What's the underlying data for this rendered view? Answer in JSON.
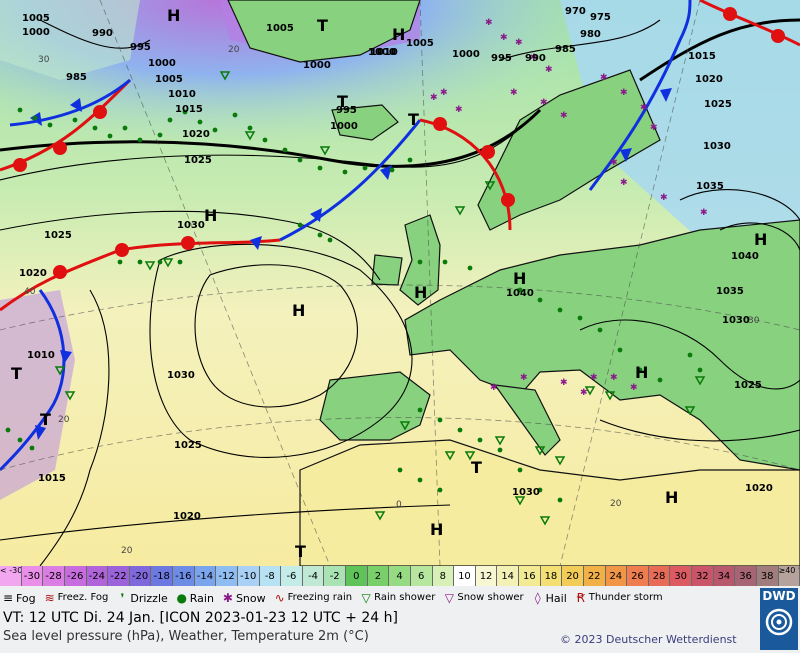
{
  "colors": {
    "cold_front": "#1030e0",
    "warm_front": "#e01010",
    "isobar": "#000000",
    "coast": "#000000",
    "rain_symbol": "#0a7a0a",
    "snow_symbol": "#8a1a8a",
    "ocean_warm": "#f7f3c6",
    "land_green": "#8ed88a"
  },
  "map": {
    "pressure_labels": [
      "1005",
      "1000",
      "990",
      "985",
      "995",
      "1000",
      "1005",
      "1005",
      "1000",
      "1010",
      "1015",
      "1020",
      "1025",
      "1030",
      "1025",
      "1020",
      "1010",
      "1030",
      "1025",
      "1020",
      "1015",
      "1000",
      "995",
      "1000",
      "1010",
      "1005",
      "1000",
      "995",
      "990",
      "985",
      "980",
      "975",
      "970",
      "1015",
      "1020",
      "1025",
      "1030",
      "1035",
      "1040",
      "1035",
      "1030",
      "1025",
      "1020",
      "1040",
      "1030"
    ],
    "highs": [
      "H",
      "H",
      "H",
      "H",
      "H",
      "H",
      "H",
      "H",
      "H",
      "H"
    ],
    "lows": [
      "T",
      "T",
      "T",
      "T",
      "T",
      "T",
      "T"
    ],
    "temp_labels": [
      "30",
      "40",
      "20",
      "30",
      "20",
      "0",
      "20",
      "20"
    ]
  },
  "scale": {
    "cells": [
      {
        "label": "< -30",
        "color": "#f3a6f0",
        "dark": false,
        "edge": true
      },
      {
        "label": "-30",
        "color": "#e98fe9",
        "dark": false
      },
      {
        "label": "-28",
        "color": "#da7ee4",
        "dark": false
      },
      {
        "label": "-26",
        "color": "#c66cde",
        "dark": false
      },
      {
        "label": "-24",
        "color": "#b163da",
        "dark": false
      },
      {
        "label": "-22",
        "color": "#9b62d9",
        "dark": false
      },
      {
        "label": "-20",
        "color": "#7e68dc",
        "dark": false
      },
      {
        "label": "-18",
        "color": "#6d78e0",
        "dark": false
      },
      {
        "label": "-16",
        "color": "#6d8ce6",
        "dark": false
      },
      {
        "label": "-14",
        "color": "#7aa4ec",
        "dark": false
      },
      {
        "label": "-12",
        "color": "#8fbcf1",
        "dark": false
      },
      {
        "label": "-10",
        "color": "#a8d1f5",
        "dark": false
      },
      {
        "label": "-8",
        "color": "#b7e2f4",
        "dark": false
      },
      {
        "label": "-6",
        "color": "#c3ece8",
        "dark": false
      },
      {
        "label": "-4",
        "color": "#bfe9d2",
        "dark": false
      },
      {
        "label": "-2",
        "color": "#a9e3b4",
        "dark": false
      },
      {
        "label": "0",
        "color": "#5fc35a",
        "dark": false
      },
      {
        "label": "2",
        "color": "#79cf6a",
        "dark": false
      },
      {
        "label": "4",
        "color": "#96db84",
        "dark": false
      },
      {
        "label": "6",
        "color": "#b7e79f",
        "dark": false
      },
      {
        "label": "8",
        "color": "#d6f0b6",
        "dark": false
      },
      {
        "label": "10",
        "color": "#ffffff",
        "dark": false
      },
      {
        "label": "12",
        "color": "#f8f7d3",
        "dark": false
      },
      {
        "label": "14",
        "color": "#f4f1b6",
        "dark": false
      },
      {
        "label": "16",
        "color": "#f3ea94",
        "dark": false
      },
      {
        "label": "18",
        "color": "#f3df73",
        "dark": false
      },
      {
        "label": "20",
        "color": "#f3cc58",
        "dark": false
      },
      {
        "label": "22",
        "color": "#f2b146",
        "dark": false
      },
      {
        "label": "24",
        "color": "#f19546",
        "dark": false
      },
      {
        "label": "26",
        "color": "#ef7d50",
        "dark": false
      },
      {
        "label": "28",
        "color": "#e86b58",
        "dark": false
      },
      {
        "label": "30",
        "color": "#dc5b62",
        "dark": false
      },
      {
        "label": "32",
        "color": "#ca5568",
        "dark": false
      },
      {
        "label": "34",
        "color": "#b8586d",
        "dark": false
      },
      {
        "label": "36",
        "color": "#a66474",
        "dark": false
      },
      {
        "label": "38",
        "color": "#a07d7c",
        "dark": false
      },
      {
        "label": "≥40 °C",
        "color": "#b6a29c",
        "dark": false,
        "edge": true
      }
    ]
  },
  "legend": [
    {
      "symbol": "≡",
      "label": "Fog",
      "color": "#000000"
    },
    {
      "symbol": "≋",
      "label": "Freez. Fog",
      "color": "#b01010"
    },
    {
      "symbol": "❜",
      "label": "Drizzle",
      "color": "#0a7a0a"
    },
    {
      "symbol": "●",
      "label": "Rain",
      "color": "#0a7a0a"
    },
    {
      "symbol": "✱",
      "label": "Snow",
      "color": "#8a1a8a"
    },
    {
      "symbol": "∿",
      "label": "Freezing rain",
      "color": "#b01010"
    },
    {
      "symbol": "▽",
      "label": "Rain shower",
      "color": "#0a7a0a"
    },
    {
      "symbol": "▽",
      "label": "Snow shower",
      "color": "#8a1a8a"
    },
    {
      "symbol": "◊",
      "label": "Hail",
      "color": "#8a1a8a"
    },
    {
      "symbol": "Ꞧ",
      "label": "Thunder storm",
      "color": "#b01010"
    }
  ],
  "footer": {
    "vt": "VT: 12 UTC Di.   24 Jan. [ICON 2023-01-23  12 UTC + 24 h]",
    "subtitle": "Sea level pressure (hPa), Weather, Temperature 2m (°C)",
    "copyright": "© 2023 Deutscher Wetterdienst",
    "logo": "DWD"
  }
}
